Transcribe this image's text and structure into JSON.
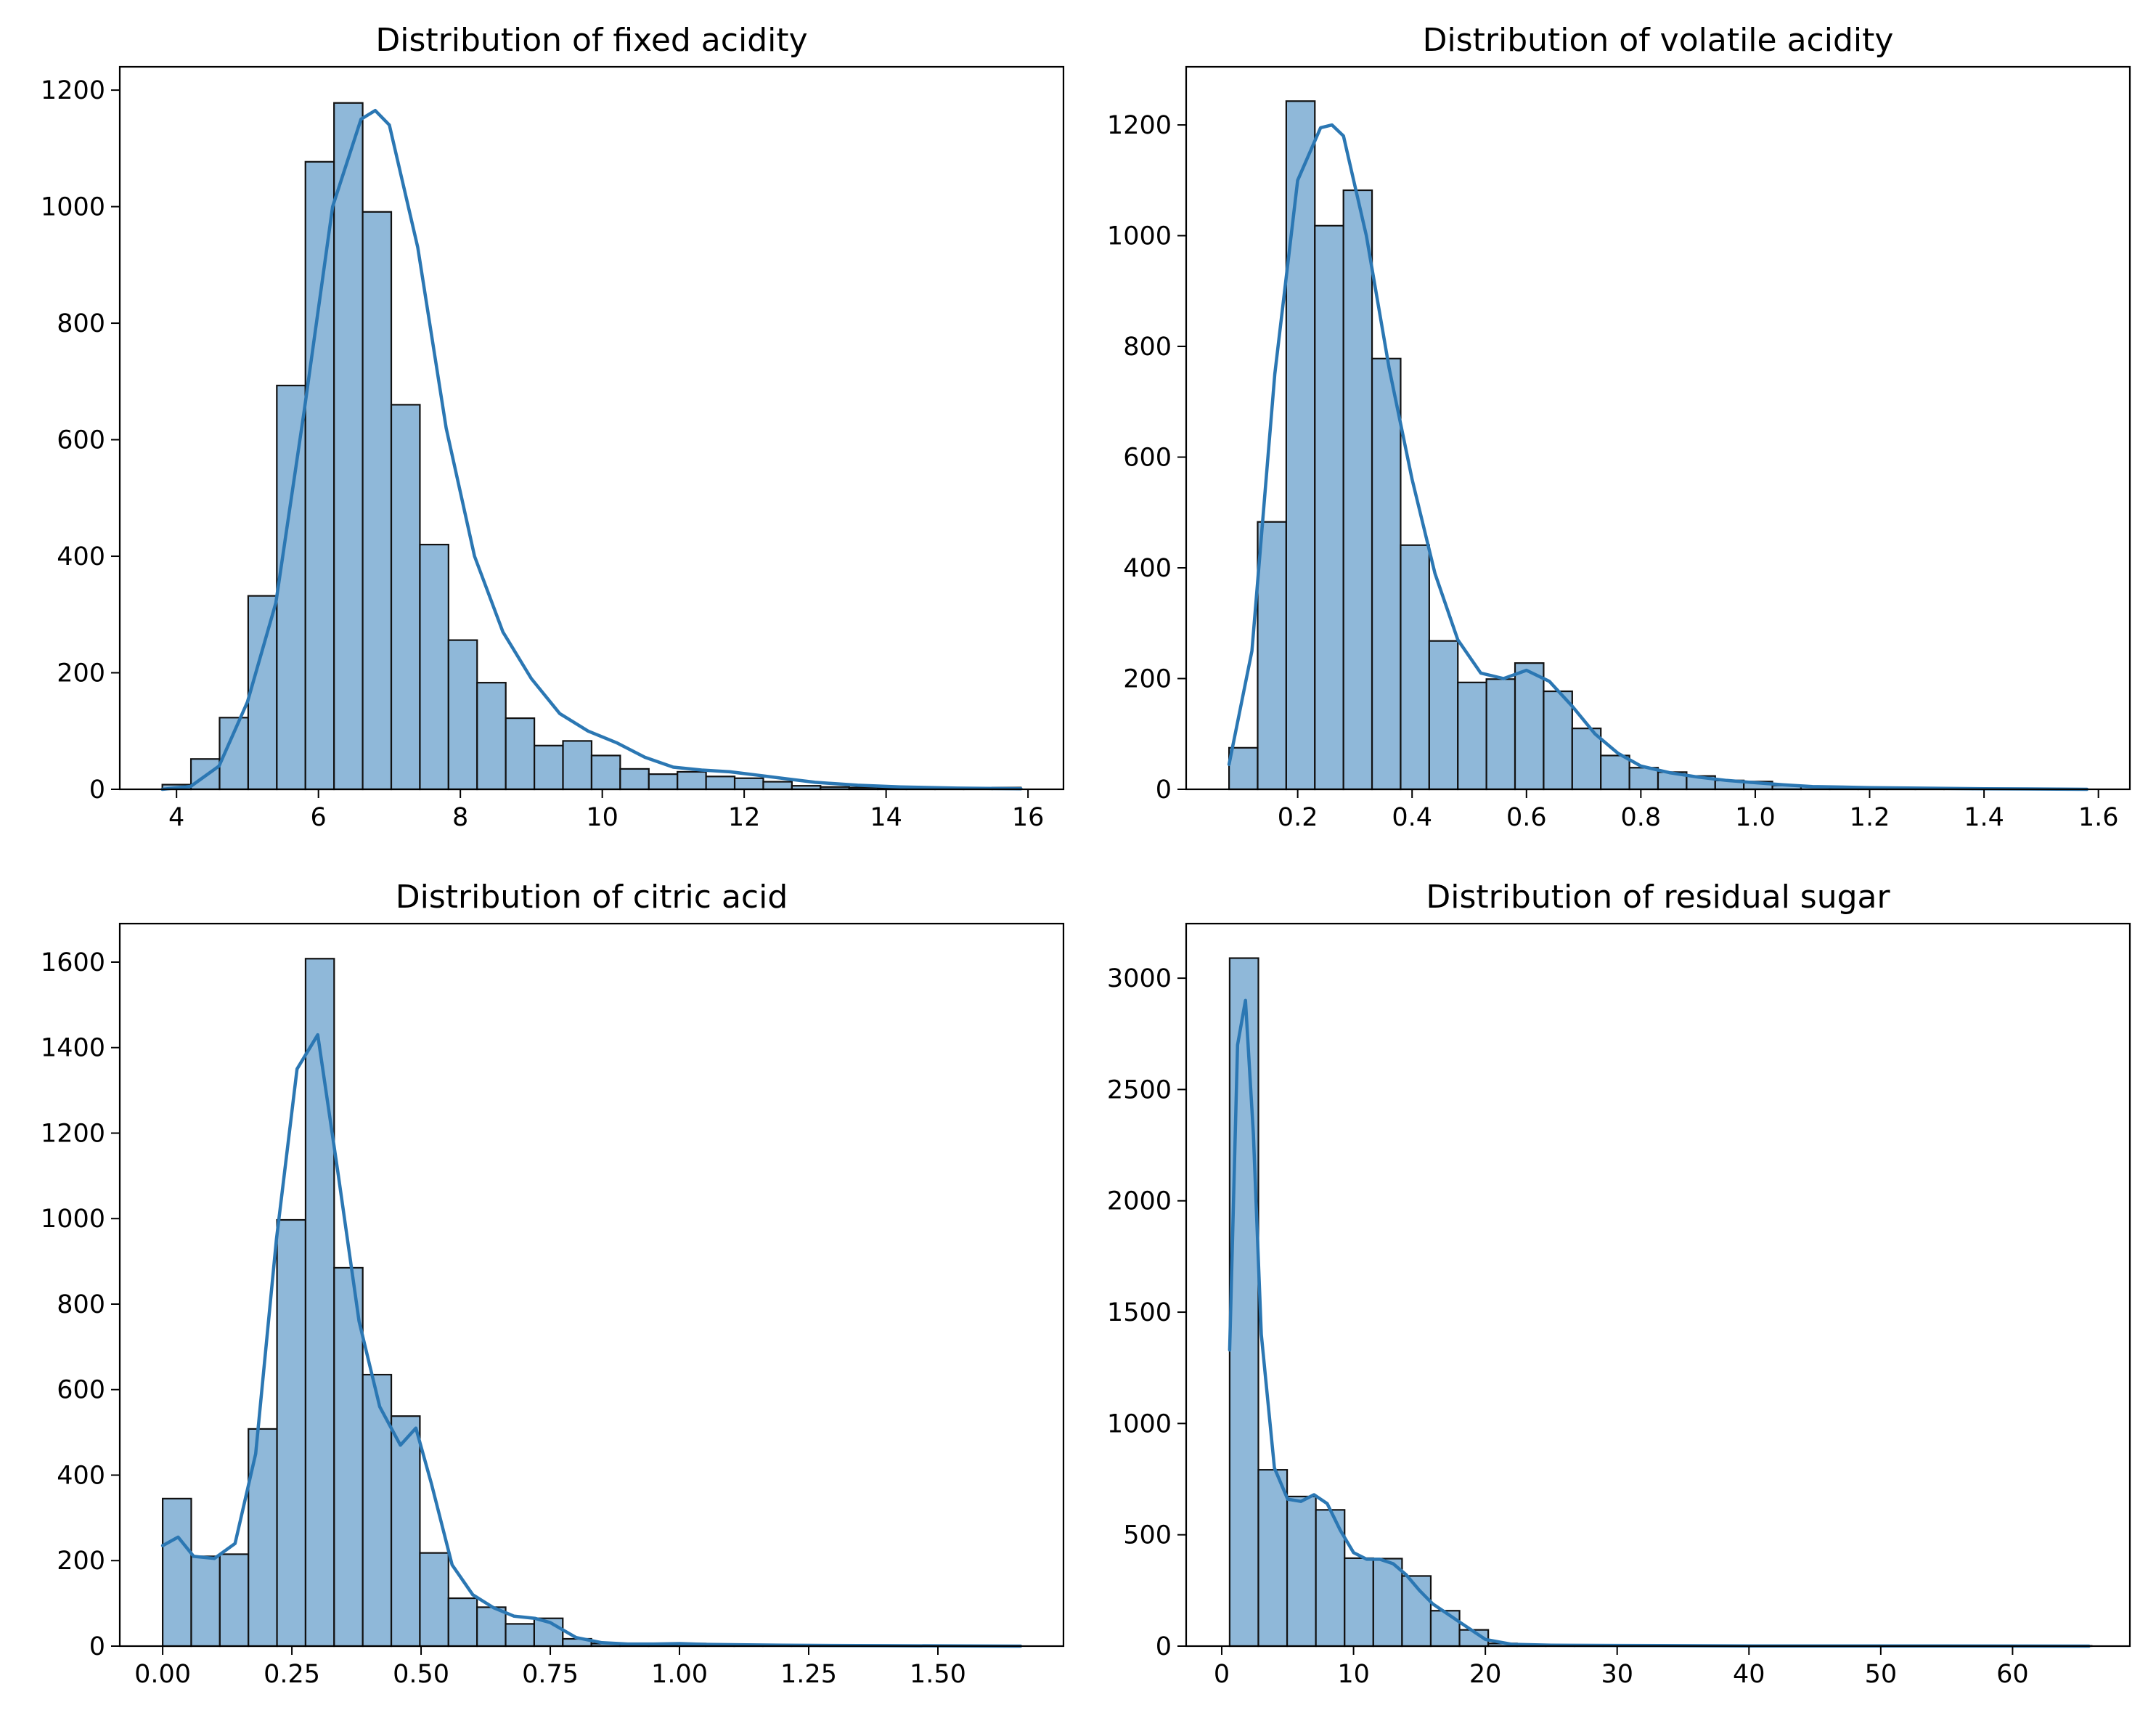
{
  "colors": {
    "bar_fill": "#8fb8d9",
    "bar_edge": "#111111",
    "kde_line": "#2b77b3",
    "axes": "#000000",
    "background": "#ffffff"
  },
  "chart_data": [
    {
      "type": "bar",
      "title": "Distribution of fixed acidity",
      "xlabel": "",
      "ylabel": "",
      "xlim": [
        3.2,
        16.5
      ],
      "ylim": [
        0,
        1240
      ],
      "xticks": [
        4,
        6,
        8,
        10,
        12,
        14,
        16
      ],
      "yticks": [
        0,
        200,
        400,
        600,
        800,
        1000,
        1200
      ],
      "grid": false,
      "histogram": {
        "bin_start": 3.8,
        "bin_width": 0.4033,
        "counts": [
          8,
          52,
          123,
          332,
          693,
          1077,
          1178,
          991,
          660,
          420,
          256,
          183,
          122,
          75,
          83,
          58,
          35,
          26,
          30,
          22,
          19,
          13,
          6,
          4,
          3,
          2,
          1,
          1,
          1,
          3
        ]
      },
      "kde": {
        "x": [
          3.8,
          4.2,
          4.6,
          5.0,
          5.4,
          5.8,
          6.2,
          6.6,
          6.8,
          7.0,
          7.4,
          7.8,
          8.2,
          8.6,
          9.0,
          9.4,
          9.8,
          10.2,
          10.6,
          11.0,
          11.4,
          11.8,
          12.2,
          12.6,
          13.0,
          13.6,
          14.2,
          15.0,
          15.9
        ],
        "y": [
          0,
          5,
          40,
          150,
          320,
          650,
          1000,
          1150,
          1165,
          1140,
          930,
          620,
          400,
          270,
          190,
          130,
          100,
          80,
          55,
          38,
          33,
          30,
          24,
          18,
          12,
          7,
          4,
          2,
          1
        ]
      }
    },
    {
      "type": "bar",
      "title": "Distribution of volatile acidity",
      "xlabel": "",
      "ylabel": "",
      "xlim": [
        0.005,
        1.655
      ],
      "ylim": [
        0,
        1305
      ],
      "xticks": [
        0.2,
        0.4,
        0.6,
        0.8,
        1.0,
        1.2,
        1.4,
        1.6
      ],
      "xtick_labels": [
        "0.2",
        "0.4",
        "0.6",
        "0.8",
        "1.0",
        "1.2",
        "1.4",
        "1.6"
      ],
      "yticks": [
        0,
        200,
        400,
        600,
        800,
        1000,
        1200
      ],
      "grid": false,
      "histogram": {
        "bin_start": 0.08,
        "bin_width": 0.05,
        "counts": [
          75,
          483,
          1243,
          1018,
          1082,
          778,
          441,
          268,
          193,
          199,
          228,
          177,
          110,
          61,
          39,
          31,
          24,
          16,
          14,
          7,
          5,
          3,
          2,
          1,
          1,
          1,
          1,
          1,
          1,
          1
        ]
      },
      "kde": {
        "x": [
          0.08,
          0.12,
          0.16,
          0.2,
          0.24,
          0.26,
          0.28,
          0.32,
          0.36,
          0.4,
          0.44,
          0.48,
          0.52,
          0.56,
          0.6,
          0.64,
          0.68,
          0.72,
          0.76,
          0.8,
          0.85,
          0.9,
          0.95,
          1.0,
          1.05,
          1.1,
          1.2,
          1.3,
          1.4,
          1.58
        ],
        "y": [
          45,
          250,
          750,
          1100,
          1195,
          1200,
          1180,
          1000,
          760,
          560,
          390,
          270,
          210,
          200,
          215,
          195,
          150,
          100,
          65,
          42,
          30,
          22,
          16,
          12,
          8,
          5,
          3,
          2,
          1,
          0
        ]
      }
    },
    {
      "type": "bar",
      "title": "Distribution of citric acid",
      "xlabel": "",
      "ylabel": "",
      "xlim": [
        -0.083,
        1.743
      ],
      "ylim": [
        0,
        1690
      ],
      "xticks": [
        0,
        0.25,
        0.5,
        0.75,
        1.0,
        1.25,
        1.5
      ],
      "xtick_labels": [
        "0.00",
        "0.25",
        "0.50",
        "0.75",
        "1.00",
        "1.25",
        "1.50"
      ],
      "yticks": [
        0,
        200,
        400,
        600,
        800,
        1000,
        1200,
        1400,
        1600
      ],
      "grid": false,
      "histogram": {
        "bin_start": 0.0,
        "bin_width": 0.0553,
        "counts": [
          345,
          210,
          215,
          508,
          997,
          1608,
          885,
          635,
          538,
          218,
          112,
          91,
          52,
          65,
          17,
          6,
          5,
          3,
          6,
          2,
          1,
          1,
          1,
          1,
          1,
          1,
          0,
          0,
          0,
          1
        ]
      },
      "kde": {
        "x": [
          0.0,
          0.03,
          0.06,
          0.1,
          0.14,
          0.18,
          0.22,
          0.26,
          0.3,
          0.34,
          0.38,
          0.42,
          0.46,
          0.49,
          0.52,
          0.56,
          0.6,
          0.64,
          0.68,
          0.72,
          0.75,
          0.8,
          0.85,
          0.9,
          0.95,
          1.0,
          1.05,
          1.2,
          1.4,
          1.66
        ],
        "y": [
          235,
          255,
          210,
          205,
          240,
          450,
          950,
          1350,
          1430,
          1100,
          760,
          560,
          470,
          510,
          380,
          190,
          120,
          90,
          70,
          65,
          55,
          20,
          8,
          5,
          5,
          6,
          4,
          2,
          1,
          0
        ]
      }
    },
    {
      "type": "bar",
      "title": "Distribution of residual sugar",
      "xlabel": "",
      "ylabel": "",
      "xlim": [
        -2.7,
        68.9
      ],
      "ylim": [
        0,
        3245
      ],
      "xticks": [
        0,
        10,
        20,
        30,
        40,
        50,
        60
      ],
      "yticks": [
        0,
        500,
        1000,
        1500,
        2000,
        2500,
        3000
      ],
      "grid": false,
      "histogram": {
        "bin_start": 0.6,
        "bin_width": 2.18,
        "counts": [
          3090,
          792,
          672,
          612,
          395,
          393,
          315,
          159,
          73,
          12,
          4,
          2,
          3,
          1,
          1,
          1,
          1,
          1,
          1,
          1,
          1,
          0,
          1,
          1,
          0,
          0,
          0,
          1,
          0,
          1
        ]
      },
      "kde": {
        "x": [
          0.6,
          1.2,
          1.8,
          2.4,
          3.0,
          4.0,
          5.0,
          6.0,
          7.0,
          8.0,
          9.0,
          10.0,
          11.0,
          12.0,
          13.0,
          14.0,
          15.0,
          16.0,
          17.0,
          18.0,
          19.0,
          20.0,
          22.0,
          25.0,
          30.0,
          40.0,
          50.0,
          65.8
        ],
        "y": [
          1330,
          2700,
          2900,
          2300,
          1400,
          800,
          660,
          650,
          680,
          640,
          520,
          420,
          390,
          390,
          370,
          320,
          250,
          190,
          150,
          110,
          70,
          30,
          8,
          4,
          3,
          1,
          1,
          0
        ]
      }
    }
  ]
}
